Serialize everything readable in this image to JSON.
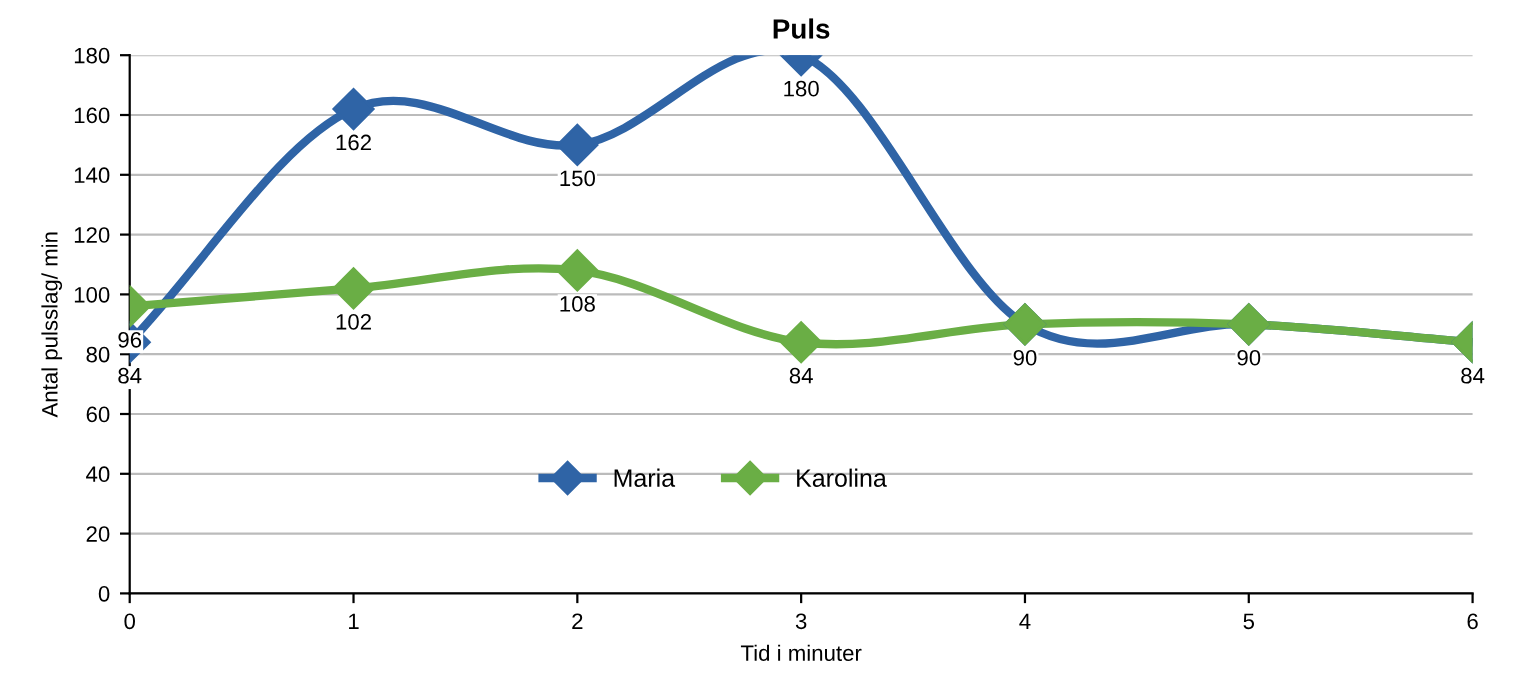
{
  "chart_data": {
    "type": "line",
    "title": "Puls",
    "xlabel": "Tid i minuter",
    "ylabel": "Antal pulsslag/ min",
    "x": [
      0,
      1,
      2,
      3,
      4,
      5,
      6
    ],
    "series": [
      {
        "name": "Maria",
        "color": "#2f64a6",
        "values": [
          84,
          162,
          150,
          180,
          90,
          90,
          84
        ],
        "value_labels": [
          "84",
          "162",
          "150",
          "180",
          "90",
          "90",
          "84"
        ]
      },
      {
        "name": "Karolina",
        "color": "#6aae45",
        "values": [
          96,
          102,
          108,
          84,
          90,
          90,
          84
        ],
        "value_labels": [
          "96",
          "102",
          "108",
          "84",
          null,
          null,
          null
        ]
      }
    ],
    "xlim": [
      0,
      6
    ],
    "xticks": [
      0,
      1,
      2,
      3,
      4,
      5,
      6
    ],
    "ylim": [
      0,
      180
    ],
    "yticks": [
      0,
      20,
      40,
      60,
      80,
      100,
      120,
      140,
      160,
      180
    ],
    "grid": "y",
    "legend": "center",
    "marker": "diamond",
    "line_style": "solid"
  }
}
